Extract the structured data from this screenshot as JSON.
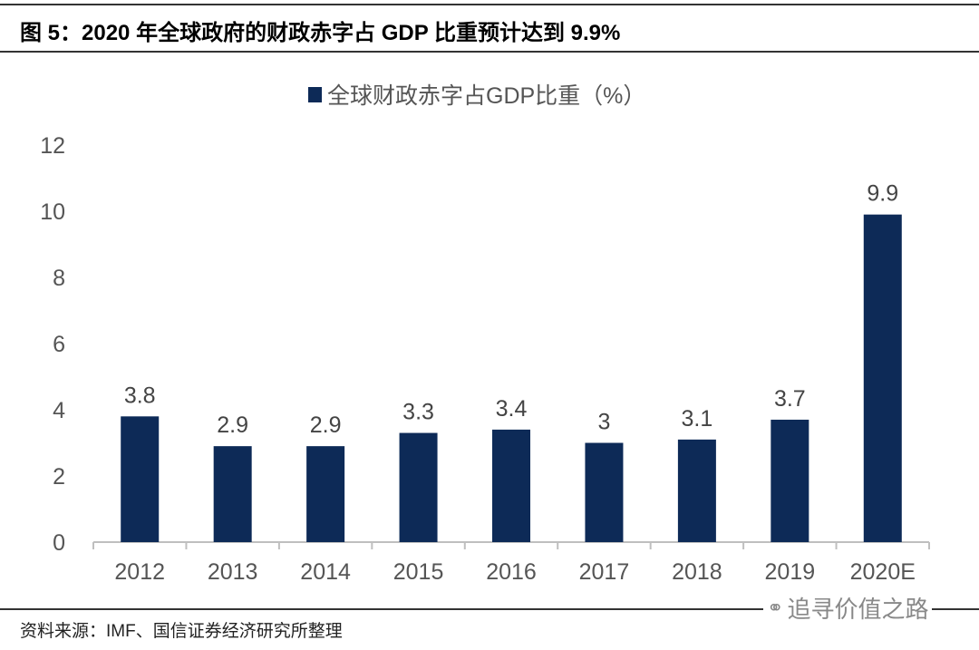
{
  "title": "图 5：2020 年全球政府的财政赤字占 GDP 比重预计达到 9.9%",
  "source": "资料来源：IMF、国信证券经济研究所整理",
  "watermark": "追寻价值之路",
  "colors": {
    "bar": "#0d2a57",
    "axis": "#bfbfbf",
    "text": "#555555"
  },
  "chart_data": {
    "type": "bar",
    "categories": [
      "2012",
      "2013",
      "2014",
      "2015",
      "2016",
      "2017",
      "2018",
      "2019",
      "2020E"
    ],
    "series": [
      {
        "name": "全球财政赤字占GDP比重（%）",
        "values": [
          3.8,
          2.9,
          2.9,
          3.3,
          3.4,
          3,
          3.1,
          3.7,
          9.9
        ]
      }
    ],
    "ylim": [
      0,
      12
    ],
    "yticks": [
      0,
      2,
      4,
      6,
      8,
      10,
      12
    ],
    "grid": false,
    "legend": "top-center",
    "data_labels": [
      "3.8",
      "2.9",
      "2.9",
      "3.3",
      "3.4",
      "3",
      "3.1",
      "3.7",
      "9.9"
    ]
  }
}
